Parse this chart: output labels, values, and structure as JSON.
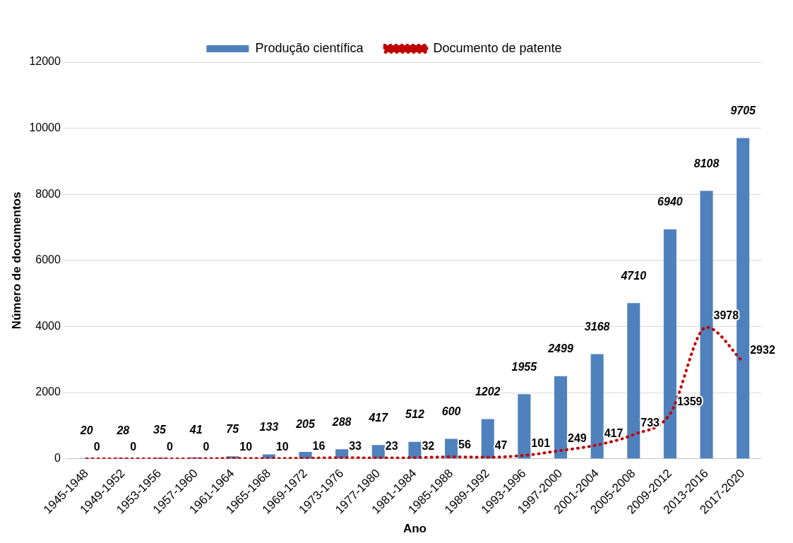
{
  "chart_data": {
    "type": "bar",
    "xlabel": "Ano",
    "ylabel": "Número de documentos",
    "categories": [
      "1945-1948",
      "1949-1952",
      "1953-1956",
      "1957-1960",
      "1961-1964",
      "1965-1968",
      "1969-1972",
      "1973-1976",
      "1977-1980",
      "1981-1984",
      "1985-1988",
      "1989-1992",
      "1993-1996",
      "1997-2000",
      "2001-2004",
      "2005-2008",
      "2009-2012",
      "2013-2016",
      "2017-2020"
    ],
    "series": [
      {
        "name": "Produção científica",
        "color": "#4f81bd",
        "values": [
          20,
          28,
          35,
          41,
          75,
          133,
          205,
          288,
          417,
          512,
          600,
          1202,
          1955,
          2499,
          3168,
          4710,
          6940,
          8108,
          9705
        ]
      },
      {
        "name": "Documento de patente",
        "type": "line",
        "color": "#c00000",
        "line_style": "dotted",
        "marker": "none",
        "values": [
          0,
          0,
          0,
          0,
          10,
          10,
          16,
          33,
          23,
          32,
          56,
          47,
          101,
          249,
          417,
          733,
          1359,
          3978,
          2932
        ]
      }
    ],
    "ylim": [
      0,
      12000
    ],
    "yticks": [
      0,
      2000,
      4000,
      6000,
      8000,
      10000,
      12000
    ],
    "grid": "y",
    "legend": "top",
    "data_labels": true
  }
}
